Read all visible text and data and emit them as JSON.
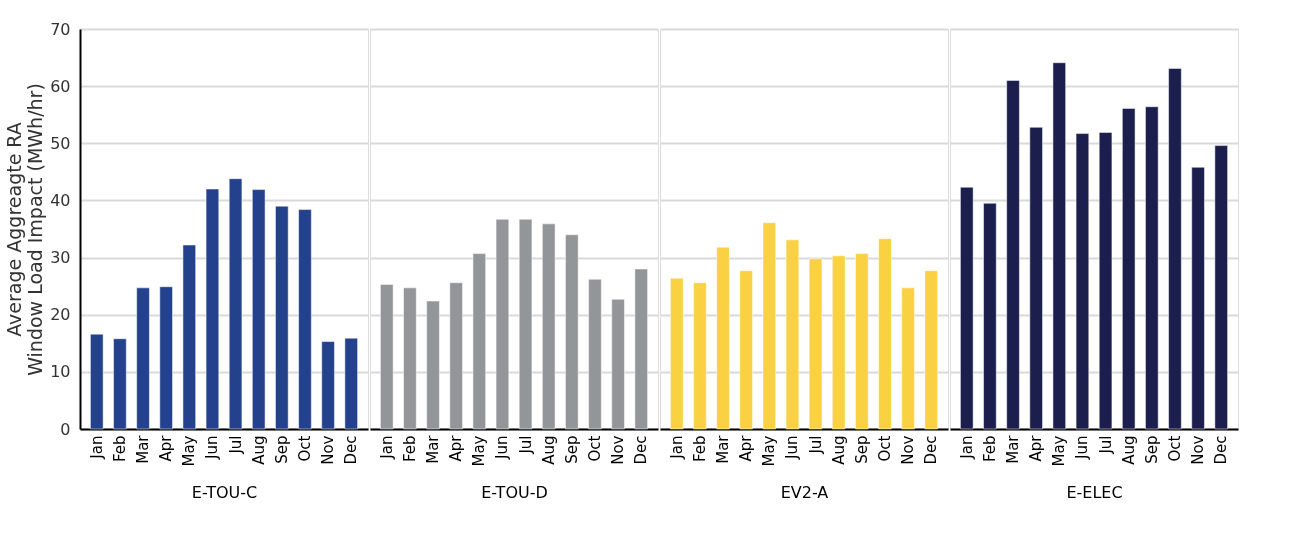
{
  "chart_data": [
    {
      "type": "bar",
      "xlabel": "E-TOU-C",
      "ylabel": "Average Aggreagte RA Window Load Impact (MWh/hr)",
      "categories": [
        "Jan",
        "Feb",
        "Mar",
        "Apr",
        "May",
        "Jun",
        "Jul",
        "Aug",
        "Sep",
        "Oct",
        "Nov",
        "Dec"
      ],
      "series": [
        {
          "color": "#23418c",
          "values": [
            16.6,
            15.8,
            24.7,
            24.9,
            32.2,
            42.0,
            43.8,
            41.9,
            39.0,
            38.4,
            15.3,
            15.9
          ]
        }
      ],
      "ylim": [
        0,
        70
      ],
      "yticks": [
        0,
        10,
        20,
        30,
        40,
        50,
        60,
        70
      ],
      "grid": "y"
    },
    {
      "type": "bar",
      "xlabel": "E-TOU-D",
      "categories": [
        "Jan",
        "Feb",
        "Mar",
        "Apr",
        "May",
        "Jun",
        "Jul",
        "Aug",
        "Sep",
        "Oct",
        "Nov",
        "Dec"
      ],
      "series": [
        {
          "color": "#939598",
          "values": [
            25.3,
            24.7,
            22.4,
            25.6,
            30.7,
            36.7,
            36.7,
            35.9,
            34.0,
            26.2,
            22.7,
            28.0
          ]
        }
      ],
      "ylim": [
        0,
        70
      ],
      "yticks": [
        0,
        10,
        20,
        30,
        40,
        50,
        60,
        70
      ],
      "grid": "y",
      "tick_labels": "x"
    },
    {
      "type": "bar",
      "xlabel": "EV2-A",
      "categories": [
        "Jan",
        "Feb",
        "Mar",
        "Apr",
        "May",
        "Jun",
        "Jul",
        "Aug",
        "Sep",
        "Oct",
        "Nov",
        "Dec"
      ],
      "series": [
        {
          "color": "#f9d142",
          "values": [
            26.4,
            25.6,
            31.8,
            27.7,
            36.1,
            33.1,
            29.8,
            30.3,
            30.7,
            33.3,
            24.7,
            27.7
          ]
        }
      ],
      "ylim": [
        0,
        70
      ],
      "yticks": [
        0,
        10,
        20,
        30,
        40,
        50,
        60,
        70
      ],
      "grid": "y",
      "tick_labels": "x"
    },
    {
      "type": "bar",
      "xlabel": "E-ELEC",
      "categories": [
        "Jan",
        "Feb",
        "Mar",
        "Apr",
        "May",
        "Jun",
        "Jul",
        "Aug",
        "Sep",
        "Oct",
        "Nov",
        "Dec"
      ],
      "series": [
        {
          "color": "#1c1f4e",
          "values": [
            42.3,
            39.5,
            61.0,
            52.8,
            64.1,
            51.7,
            51.9,
            56.1,
            56.4,
            63.1,
            45.8,
            49.6
          ]
        }
      ],
      "ylim": [
        0,
        70
      ],
      "yticks": [
        0,
        10,
        20,
        30,
        40,
        50,
        60,
        70
      ],
      "grid": "y",
      "tick_labels": "x"
    }
  ]
}
